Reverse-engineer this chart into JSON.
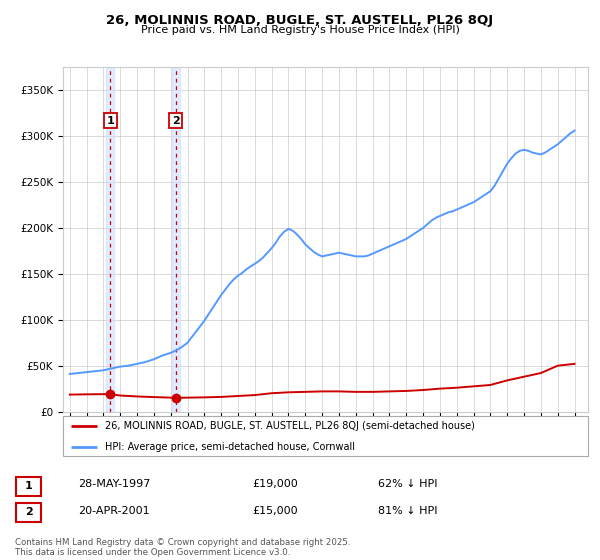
{
  "title": "26, MOLINNIS ROAD, BUGLE, ST. AUSTELL, PL26 8QJ",
  "subtitle": "Price paid vs. HM Land Registry's House Price Index (HPI)",
  "sale1_date": 1997.41,
  "sale1_price": 19000,
  "sale2_date": 2001.3,
  "sale2_price": 15000,
  "legend_line1": "26, MOLINNIS ROAD, BUGLE, ST. AUSTELL, PL26 8QJ (semi-detached house)",
  "legend_line2": "HPI: Average price, semi-detached house, Cornwall",
  "hpi_color": "#5599ff",
  "sale_color": "#cc0000",
  "shade_color": "#cce0ff",
  "ylim_max": 375000,
  "xlim_min": 1994.6,
  "xlim_max": 2025.8,
  "years_hpi": [
    1995.0,
    1995.25,
    1995.5,
    1995.75,
    1996.0,
    1996.25,
    1996.5,
    1996.75,
    1997.0,
    1997.25,
    1997.5,
    1997.75,
    1998.0,
    1998.25,
    1998.5,
    1998.75,
    1999.0,
    1999.25,
    1999.5,
    1999.75,
    2000.0,
    2000.25,
    2000.5,
    2000.75,
    2001.0,
    2001.25,
    2001.5,
    2001.75,
    2002.0,
    2002.25,
    2002.5,
    2002.75,
    2003.0,
    2003.25,
    2003.5,
    2003.75,
    2004.0,
    2004.25,
    2004.5,
    2004.75,
    2005.0,
    2005.25,
    2005.5,
    2005.75,
    2006.0,
    2006.25,
    2006.5,
    2006.75,
    2007.0,
    2007.25,
    2007.5,
    2007.75,
    2008.0,
    2008.25,
    2008.5,
    2008.75,
    2009.0,
    2009.25,
    2009.5,
    2009.75,
    2010.0,
    2010.25,
    2010.5,
    2010.75,
    2011.0,
    2011.25,
    2011.5,
    2011.75,
    2012.0,
    2012.25,
    2012.5,
    2012.75,
    2013.0,
    2013.25,
    2013.5,
    2013.75,
    2014.0,
    2014.25,
    2014.5,
    2014.75,
    2015.0,
    2015.25,
    2015.5,
    2015.75,
    2016.0,
    2016.25,
    2016.5,
    2016.75,
    2017.0,
    2017.25,
    2017.5,
    2017.75,
    2018.0,
    2018.25,
    2018.5,
    2018.75,
    2019.0,
    2019.25,
    2019.5,
    2019.75,
    2020.0,
    2020.25,
    2020.5,
    2020.75,
    2021.0,
    2021.25,
    2021.5,
    2021.75,
    2022.0,
    2022.25,
    2022.5,
    2022.75,
    2023.0,
    2023.25,
    2023.5,
    2023.75,
    2024.0,
    2024.25,
    2024.5,
    2024.75,
    2025.0
  ],
  "hpi_values": [
    41000,
    41500,
    42000,
    42500,
    43000,
    43500,
    44000,
    44500,
    45000,
    46000,
    47000,
    48000,
    49000,
    49500,
    50000,
    51000,
    52000,
    53000,
    54000,
    55500,
    57000,
    59000,
    61000,
    62500,
    64000,
    66000,
    68500,
    71500,
    75000,
    81000,
    87000,
    93000,
    99000,
    106000,
    113000,
    120000,
    127000,
    133000,
    139000,
    144000,
    148000,
    151000,
    155000,
    158000,
    161000,
    164000,
    168000,
    173000,
    178000,
    184000,
    191000,
    196000,
    199000,
    197000,
    193000,
    188000,
    182000,
    178000,
    174000,
    171000,
    169000,
    170000,
    171000,
    172000,
    173000,
    172000,
    171000,
    170000,
    169000,
    169000,
    169000,
    170000,
    172000,
    174000,
    176000,
    178000,
    180000,
    182000,
    184000,
    186000,
    188000,
    191000,
    194000,
    197000,
    200000,
    204000,
    208000,
    211000,
    213000,
    215000,
    217000,
    218000,
    220000,
    222000,
    224000,
    226000,
    228000,
    231000,
    234000,
    237000,
    240000,
    246000,
    254000,
    262000,
    270000,
    276000,
    281000,
    284000,
    285000,
    284000,
    282000,
    281000,
    280000,
    282000,
    285000,
    288000,
    291000,
    295000,
    299000,
    303000,
    306000
  ],
  "sale_years": [
    1995.0,
    1996.0,
    1997.0,
    1997.41,
    1998.0,
    1999.0,
    2000.0,
    2001.0,
    2001.3,
    2002.0,
    2003.0,
    2004.0,
    2005.0,
    2006.0,
    2007.0,
    2008.0,
    2009.0,
    2010.0,
    2011.0,
    2012.0,
    2013.0,
    2014.0,
    2015.0,
    2016.0,
    2017.0,
    2018.0,
    2019.0,
    2020.0,
    2021.0,
    2022.0,
    2023.0,
    2024.0,
    2025.0
  ],
  "sale_values": [
    18500,
    18800,
    19000,
    19000,
    17500,
    16500,
    15800,
    15200,
    15000,
    15200,
    15500,
    16000,
    17000,
    18000,
    20000,
    21000,
    21500,
    22000,
    22000,
    21500,
    21500,
    22000,
    22500,
    23500,
    25000,
    26000,
    27500,
    29000,
    34000,
    38000,
    42000,
    50000,
    52000
  ]
}
